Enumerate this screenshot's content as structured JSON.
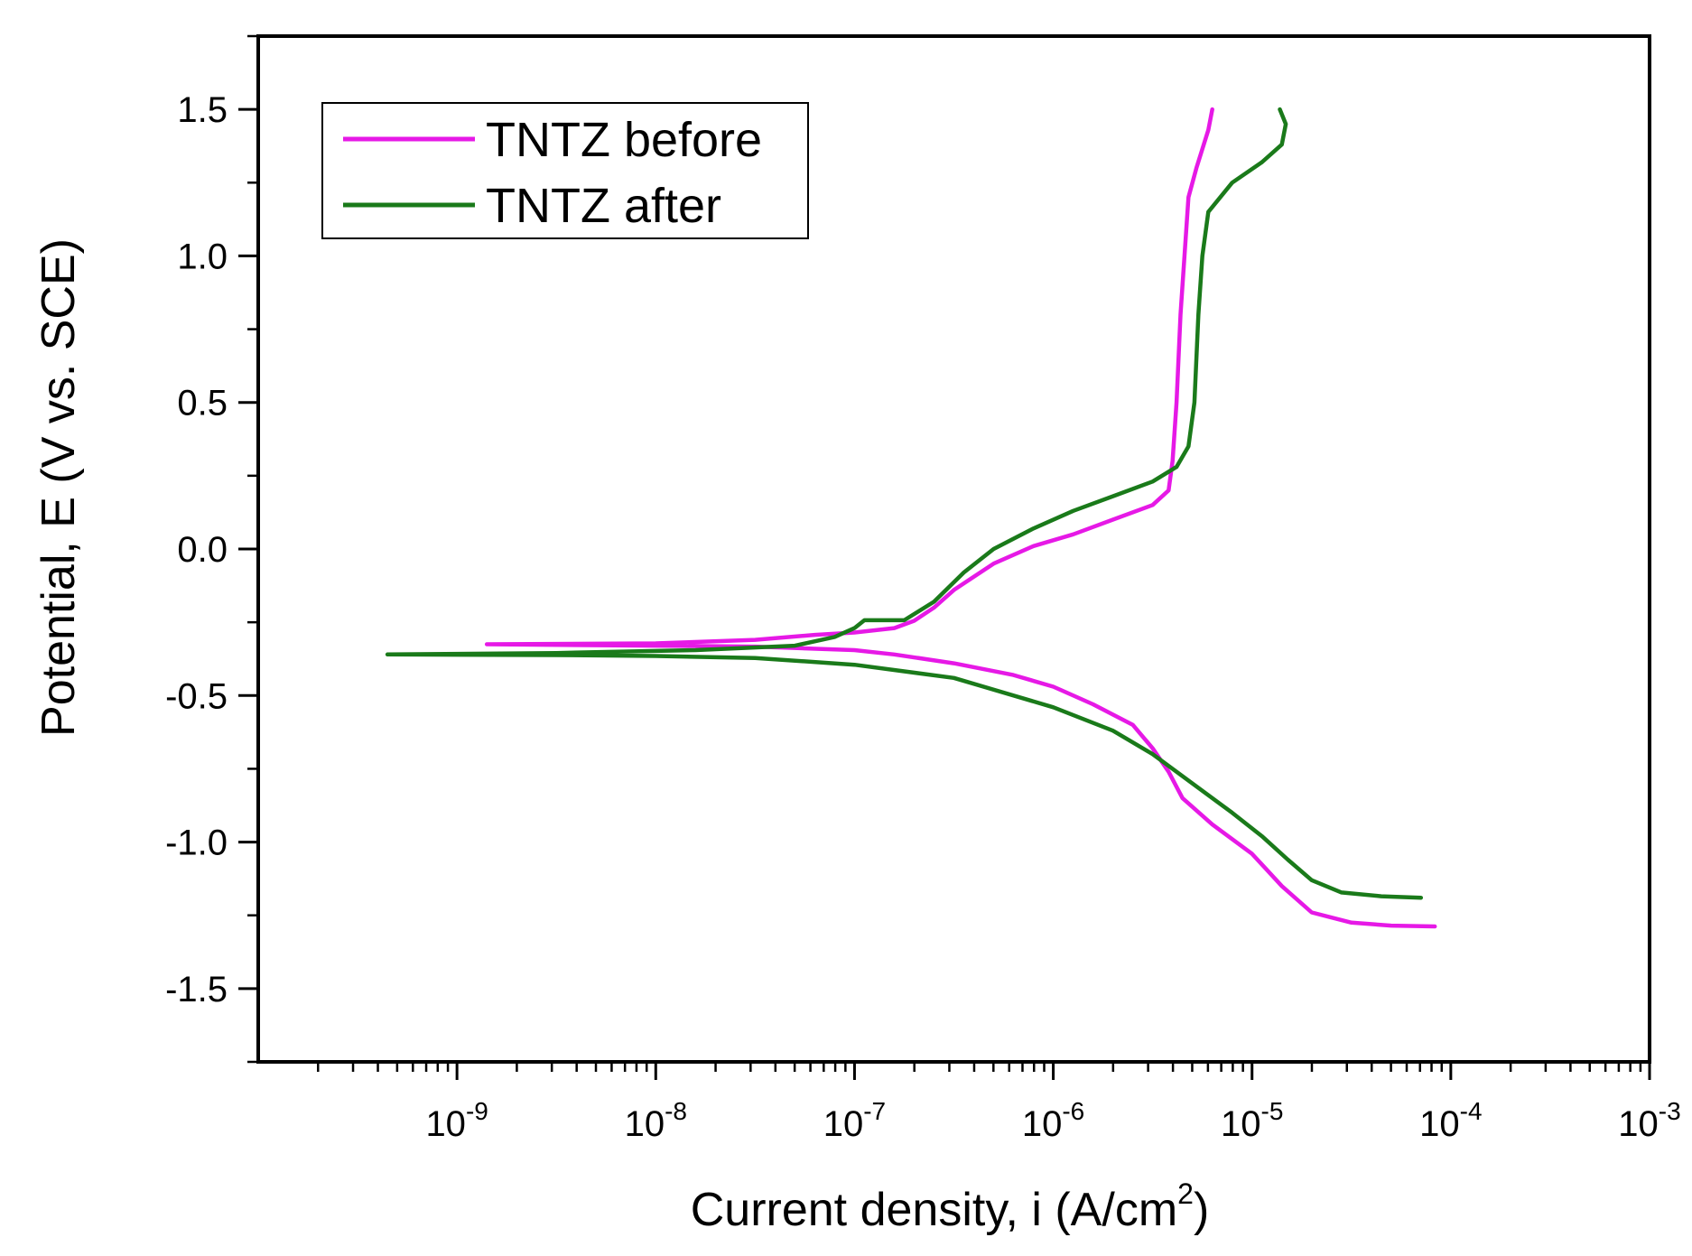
{
  "chart_data": {
    "type": "line",
    "title": "",
    "xlabel": "Current density, i (A/cm",
    "xlabel_sup": "2",
    "xlabel_close": ")",
    "ylabel": "Potential, E (V vs. SCE)",
    "xscale": "log",
    "xlim_log10": [
      -10,
      -3
    ],
    "ylim": [
      -1.75,
      1.75
    ],
    "x_ticks": [
      {
        "base": "10",
        "exp": "-9",
        "log10": -9
      },
      {
        "base": "10",
        "exp": "-8",
        "log10": -8
      },
      {
        "base": "10",
        "exp": "-7",
        "log10": -7
      },
      {
        "base": "10",
        "exp": "-6",
        "log10": -6
      },
      {
        "base": "10",
        "exp": "-5",
        "log10": -5
      },
      {
        "base": "10",
        "exp": "-4",
        "log10": -4
      },
      {
        "base": "10",
        "exp": "-3",
        "log10": -3
      }
    ],
    "y_ticks": [
      {
        "label": "1.5",
        "value": 1.5
      },
      {
        "label": "1.0",
        "value": 1.0
      },
      {
        "label": "0.5",
        "value": 0.5
      },
      {
        "label": "0.0",
        "value": 0.0
      },
      {
        "label": "-0.5",
        "value": -0.5
      },
      {
        "label": "-1.0",
        "value": -1.0
      },
      {
        "label": "-1.5",
        "value": -1.5
      }
    ],
    "legend_position": "top-left",
    "grid": false,
    "series": [
      {
        "name": "TNTZ before",
        "color": "#e619e6",
        "cathodic": [
          [
            -8.85,
            -0.325
          ],
          [
            -8.0,
            -0.33
          ],
          [
            -7.5,
            -0.333
          ],
          [
            -7.0,
            -0.345
          ],
          [
            -6.8,
            -0.36
          ],
          [
            -6.5,
            -0.39
          ],
          [
            -6.2,
            -0.43
          ],
          [
            -6.0,
            -0.47
          ],
          [
            -5.8,
            -0.53
          ],
          [
            -5.6,
            -0.6
          ],
          [
            -5.5,
            -0.68
          ],
          [
            -5.42,
            -0.76
          ],
          [
            -5.35,
            -0.85
          ],
          [
            -5.2,
            -0.94
          ],
          [
            -5.0,
            -1.04
          ],
          [
            -4.85,
            -1.15
          ],
          [
            -4.7,
            -1.24
          ],
          [
            -4.5,
            -1.275
          ],
          [
            -4.3,
            -1.285
          ],
          [
            -4.08,
            -1.288
          ]
        ],
        "anodic": [
          [
            -8.85,
            -0.325
          ],
          [
            -8.0,
            -0.322
          ],
          [
            -7.5,
            -0.31
          ],
          [
            -7.2,
            -0.293
          ],
          [
            -7.0,
            -0.285
          ],
          [
            -6.8,
            -0.27
          ],
          [
            -6.7,
            -0.245
          ],
          [
            -6.6,
            -0.2
          ],
          [
            -6.5,
            -0.14
          ],
          [
            -6.3,
            -0.05
          ],
          [
            -6.1,
            0.01
          ],
          [
            -5.9,
            0.05
          ],
          [
            -5.7,
            0.1
          ],
          [
            -5.5,
            0.15
          ],
          [
            -5.42,
            0.2
          ],
          [
            -5.4,
            0.3
          ],
          [
            -5.38,
            0.5
          ],
          [
            -5.36,
            0.8
          ],
          [
            -5.34,
            1.0
          ],
          [
            -5.32,
            1.2
          ],
          [
            -5.28,
            1.3
          ],
          [
            -5.22,
            1.43
          ],
          [
            -5.2,
            1.5
          ]
        ]
      },
      {
        "name": "TNTZ after",
        "color": "#1a7a1a",
        "cathodic": [
          [
            -9.35,
            -0.36
          ],
          [
            -8.5,
            -0.362
          ],
          [
            -8.0,
            -0.365
          ],
          [
            -7.5,
            -0.372
          ],
          [
            -7.0,
            -0.395
          ],
          [
            -6.5,
            -0.44
          ],
          [
            -6.0,
            -0.54
          ],
          [
            -5.7,
            -0.62
          ],
          [
            -5.5,
            -0.7
          ],
          [
            -5.3,
            -0.8
          ],
          [
            -5.1,
            -0.9
          ],
          [
            -4.95,
            -0.98
          ],
          [
            -4.82,
            -1.06
          ],
          [
            -4.7,
            -1.13
          ],
          [
            -4.55,
            -1.172
          ],
          [
            -4.35,
            -1.185
          ],
          [
            -4.15,
            -1.19
          ]
        ],
        "anodic": [
          [
            -9.35,
            -0.36
          ],
          [
            -8.5,
            -0.355
          ],
          [
            -7.8,
            -0.345
          ],
          [
            -7.3,
            -0.33
          ],
          [
            -7.1,
            -0.3
          ],
          [
            -7.0,
            -0.27
          ],
          [
            -6.95,
            -0.243
          ],
          [
            -6.75,
            -0.243
          ],
          [
            -6.6,
            -0.18
          ],
          [
            -6.45,
            -0.08
          ],
          [
            -6.3,
            0.0
          ],
          [
            -6.1,
            0.07
          ],
          [
            -5.9,
            0.13
          ],
          [
            -5.7,
            0.18
          ],
          [
            -5.5,
            0.23
          ],
          [
            -5.38,
            0.28
          ],
          [
            -5.32,
            0.35
          ],
          [
            -5.29,
            0.5
          ],
          [
            -5.27,
            0.8
          ],
          [
            -5.25,
            1.0
          ],
          [
            -5.22,
            1.15
          ],
          [
            -5.1,
            1.25
          ],
          [
            -4.95,
            1.32
          ],
          [
            -4.85,
            1.38
          ],
          [
            -4.83,
            1.45
          ],
          [
            -4.86,
            1.5
          ]
        ]
      }
    ]
  }
}
